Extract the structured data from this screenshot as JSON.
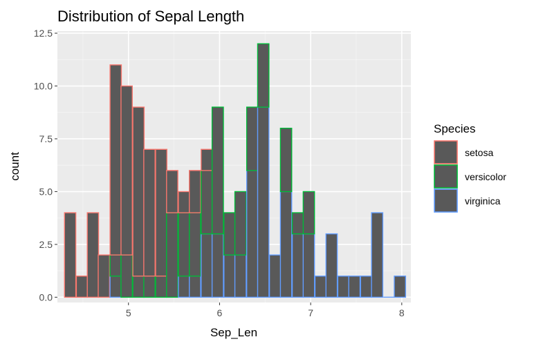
{
  "chart_data": {
    "type": "bar",
    "subtype": "stacked-histogram",
    "title": "Distribution of Sepal Length",
    "xlabel": "Sep_Len",
    "ylabel": "count",
    "xlim": [
      4.22,
      8.1
    ],
    "ylim": [
      -0.25,
      12.6
    ],
    "xticks": [
      5,
      6,
      7,
      8
    ],
    "yticks": [
      0.0,
      2.5,
      5.0,
      7.5,
      10.0,
      12.5
    ],
    "ytick_labels": [
      "0.0",
      "2.5",
      "5.0",
      "7.5",
      "10.0",
      "12.5"
    ],
    "grid": true,
    "bin_width": 0.124,
    "bin_start": 4.3,
    "bin_centers": [
      4.36,
      4.49,
      4.61,
      4.73,
      4.86,
      4.98,
      5.11,
      5.23,
      5.36,
      5.48,
      5.61,
      5.73,
      5.86,
      5.98,
      6.11,
      6.23,
      6.36,
      6.48,
      6.61,
      6.73,
      6.86,
      6.98,
      7.11,
      7.23,
      7.36,
      7.48,
      7.61,
      7.73,
      7.86,
      7.98
    ],
    "legend": {
      "title": "Species",
      "position": "right"
    },
    "series": [
      {
        "name": "setosa",
        "color": "#F8766D",
        "values": [
          4,
          1,
          4,
          2,
          9,
          8,
          8,
          6,
          6,
          2,
          1,
          2,
          1,
          0,
          0,
          0,
          0,
          0,
          0,
          0,
          0,
          0,
          0,
          0,
          0,
          0,
          0,
          0,
          0,
          0
        ]
      },
      {
        "name": "versicolor",
        "color": "#00BA38",
        "values": [
          0,
          0,
          0,
          0,
          1,
          2,
          1,
          1,
          1,
          4,
          3,
          3,
          3,
          6,
          2,
          3,
          3,
          3,
          0,
          3,
          1,
          2,
          0,
          0,
          0,
          0,
          0,
          0,
          0,
          0
        ]
      },
      {
        "name": "virginica",
        "color": "#619CFF",
        "values": [
          0,
          0,
          0,
          0,
          1,
          0,
          0,
          0,
          0,
          0,
          1,
          1,
          3,
          3,
          2,
          2,
          6,
          9,
          2,
          5,
          3,
          3,
          1,
          3,
          1,
          1,
          1,
          4,
          0,
          1
        ]
      }
    ],
    "bar_fill": "#595959"
  }
}
